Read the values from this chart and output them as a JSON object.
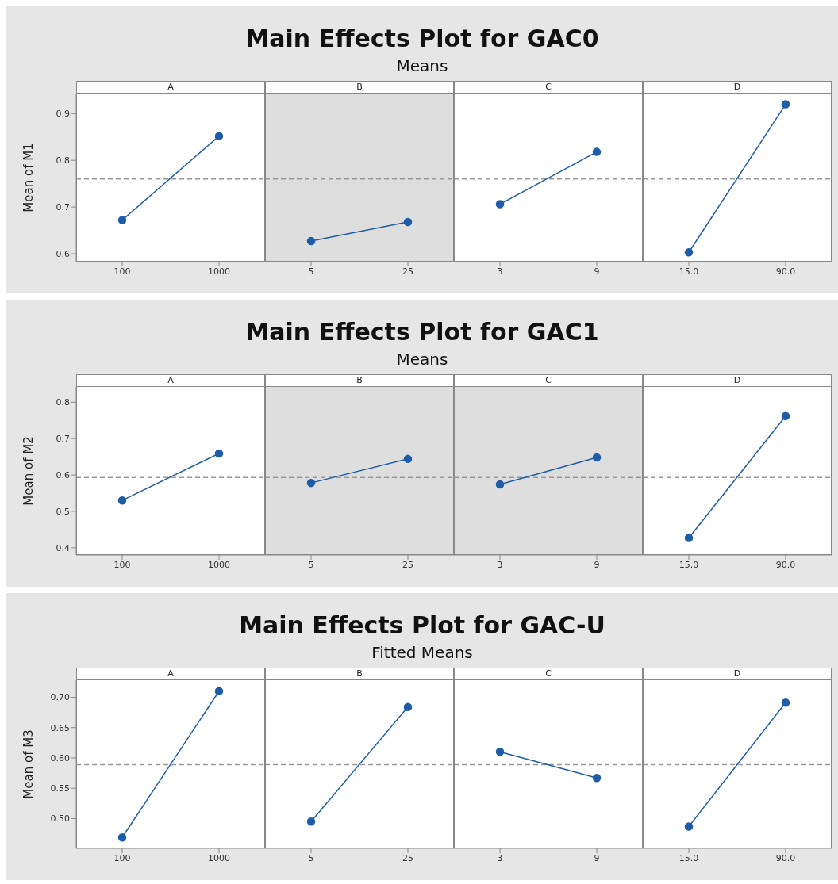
{
  "chart_data": [
    {
      "type": "line",
      "title": "A",
      "annotations": [
        "Main Effects Plot for GAC0",
        "Means"
      ],
      "ylabel": "Mean of M1",
      "categories": [
        "100",
        "1000"
      ],
      "values": [
        0.672,
        0.852
      ],
      "color": "#1f5ca8",
      "marker": "circle",
      "ylim": [
        0.583,
        0.943
      ],
      "yticks": [
        0.6,
        0.7,
        0.8,
        0.9
      ],
      "ref_lines": [
        {
          "axis": "y",
          "value": 0.76,
          "color": "#999999",
          "line_style": "dashed"
        }
      ]
    },
    {
      "type": "line",
      "title": "B",
      "categories": [
        "5",
        "25"
      ],
      "values": [
        0.627,
        0.668
      ],
      "color": "#1f5ca8",
      "marker": "circle",
      "ylim": [
        0.583,
        0.943
      ],
      "tick_labels": "x",
      "ref_lines": [
        {
          "axis": "y",
          "value": 0.76,
          "color": "#999999",
          "line_style": "dashed"
        }
      ],
      "bands": [
        {
          "axis": "y",
          "from": 0.583,
          "to": 0.943,
          "color": "#dedede"
        }
      ]
    },
    {
      "type": "line",
      "title": "C",
      "categories": [
        "3",
        "9"
      ],
      "values": [
        0.706,
        0.818
      ],
      "color": "#1f5ca8",
      "marker": "circle",
      "ylim": [
        0.583,
        0.943
      ],
      "tick_labels": "x",
      "ref_lines": [
        {
          "axis": "y",
          "value": 0.76,
          "color": "#999999",
          "line_style": "dashed"
        }
      ]
    },
    {
      "type": "line",
      "title": "D",
      "categories": [
        "15.0",
        "90.0"
      ],
      "values": [
        0.603,
        0.92
      ],
      "color": "#1f5ca8",
      "marker": "circle",
      "ylim": [
        0.583,
        0.943
      ],
      "tick_labels": "x",
      "ref_lines": [
        {
          "axis": "y",
          "value": 0.76,
          "color": "#999999",
          "line_style": "dashed"
        }
      ]
    },
    {
      "type": "line",
      "title": "A",
      "annotations": [
        "Main Effects Plot for GAC1",
        "Means"
      ],
      "ylabel": "Mean of M2",
      "categories": [
        "100",
        "1000"
      ],
      "values": [
        0.53,
        0.659
      ],
      "color": "#1f5ca8",
      "marker": "circle",
      "ylim": [
        0.38,
        0.842
      ],
      "yticks": [
        0.4,
        0.5,
        0.6,
        0.7,
        0.8
      ],
      "ref_lines": [
        {
          "axis": "y",
          "value": 0.593,
          "color": "#999999",
          "line_style": "dashed"
        }
      ]
    },
    {
      "type": "line",
      "title": "B",
      "categories": [
        "5",
        "25"
      ],
      "values": [
        0.578,
        0.644
      ],
      "color": "#1f5ca8",
      "marker": "circle",
      "ylim": [
        0.38,
        0.842
      ],
      "tick_labels": "x",
      "ref_lines": [
        {
          "axis": "y",
          "value": 0.593,
          "color": "#999999",
          "line_style": "dashed"
        }
      ],
      "bands": [
        {
          "axis": "y",
          "from": 0.38,
          "to": 0.842,
          "color": "#dedede"
        }
      ]
    },
    {
      "type": "line",
      "title": "C",
      "categories": [
        "3",
        "9"
      ],
      "values": [
        0.574,
        0.648
      ],
      "color": "#1f5ca8",
      "marker": "circle",
      "ylim": [
        0.38,
        0.842
      ],
      "tick_labels": "x",
      "ref_lines": [
        {
          "axis": "y",
          "value": 0.593,
          "color": "#999999",
          "line_style": "dashed"
        }
      ],
      "bands": [
        {
          "axis": "y",
          "from": 0.38,
          "to": 0.842,
          "color": "#dedede"
        }
      ]
    },
    {
      "type": "line",
      "title": "D",
      "categories": [
        "15.0",
        "90.0"
      ],
      "values": [
        0.427,
        0.762
      ],
      "color": "#1f5ca8",
      "marker": "circle",
      "ylim": [
        0.38,
        0.842
      ],
      "tick_labels": "x",
      "ref_lines": [
        {
          "axis": "y",
          "value": 0.593,
          "color": "#999999",
          "line_style": "dashed"
        }
      ]
    },
    {
      "type": "line",
      "title": "A",
      "annotations": [
        "Main Effects Plot for GAC-U",
        "Fitted Means"
      ],
      "ylabel": "Mean of M3",
      "categories": [
        "100",
        "1000"
      ],
      "values": [
        0.469,
        0.71
      ],
      "color": "#1f5ca8",
      "marker": "circle",
      "ylim": [
        0.451,
        0.728
      ],
      "yticks": [
        {
          "value": 0.5,
          "label": "0.50"
        },
        {
          "value": 0.55,
          "label": "0.55"
        },
        {
          "value": 0.6,
          "label": "0.60"
        },
        {
          "value": 0.65,
          "label": "0.65"
        },
        {
          "value": 0.7,
          "label": "0.70"
        }
      ],
      "ref_lines": [
        {
          "axis": "y",
          "value": 0.589,
          "color": "#999999",
          "line_style": "dashed"
        }
      ]
    },
    {
      "type": "line",
      "title": "B",
      "categories": [
        "5",
        "25"
      ],
      "values": [
        0.495,
        0.684
      ],
      "color": "#1f5ca8",
      "marker": "circle",
      "ylim": [
        0.451,
        0.728
      ],
      "tick_labels": "x",
      "ref_lines": [
        {
          "axis": "y",
          "value": 0.589,
          "color": "#999999",
          "line_style": "dashed"
        }
      ]
    },
    {
      "type": "line",
      "title": "C",
      "categories": [
        "3",
        "9"
      ],
      "values": [
        0.61,
        0.567
      ],
      "color": "#1f5ca8",
      "marker": "circle",
      "ylim": [
        0.451,
        0.728
      ],
      "tick_labels": "x",
      "ref_lines": [
        {
          "axis": "y",
          "value": 0.589,
          "color": "#999999",
          "line_style": "dashed"
        }
      ]
    },
    {
      "type": "line",
      "title": "D",
      "categories": [
        "15.0",
        "90.0"
      ],
      "values": [
        0.487,
        0.691
      ],
      "color": "#1f5ca8",
      "marker": "circle",
      "ylim": [
        0.451,
        0.728
      ],
      "tick_labels": "x",
      "ref_lines": [
        {
          "axis": "y",
          "value": 0.589,
          "color": "#999999",
          "line_style": "dashed"
        }
      ]
    }
  ]
}
